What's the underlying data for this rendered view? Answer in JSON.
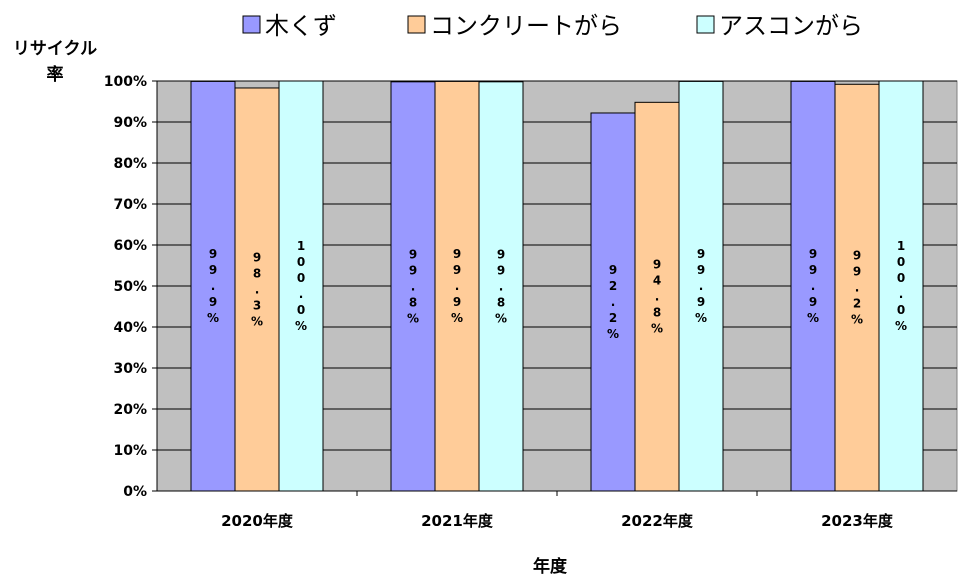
{
  "chart_data": {
    "type": "bar",
    "categories": [
      "2020年度",
      "2021年度",
      "2022年度",
      "2023年度"
    ],
    "series": [
      {
        "name": "木くず",
        "values": [
          99.9,
          99.8,
          92.2,
          99.9
        ],
        "labels": [
          "99.9%",
          "99.8%",
          "92.2%",
          "99.9%"
        ],
        "color": "#9999ff"
      },
      {
        "name": "コンクリートがら",
        "values": [
          98.3,
          99.9,
          94.8,
          99.2
        ],
        "labels": [
          "98.3%",
          "99.9%",
          "94.8%",
          "99.2%"
        ],
        "color": "#ffcc99"
      },
      {
        "name": "アスコンがら",
        "values": [
          100.0,
          99.8,
          99.9,
          100.0
        ],
        "labels": [
          "100.0%",
          "99.8%",
          "99.9%",
          "100.0%"
        ],
        "color": "#ccffff"
      }
    ],
    "ylabel_line1": "リサイクル",
    "ylabel_line2": "率",
    "xlabel": "年度",
    "ylim": [
      0,
      100
    ],
    "yticks": [
      "0%",
      "10%",
      "20%",
      "30%",
      "40%",
      "50%",
      "60%",
      "70%",
      "80%",
      "90%",
      "100%"
    ],
    "grid": true,
    "legend_position": "top",
    "plot_background": "#c0c0c0"
  }
}
